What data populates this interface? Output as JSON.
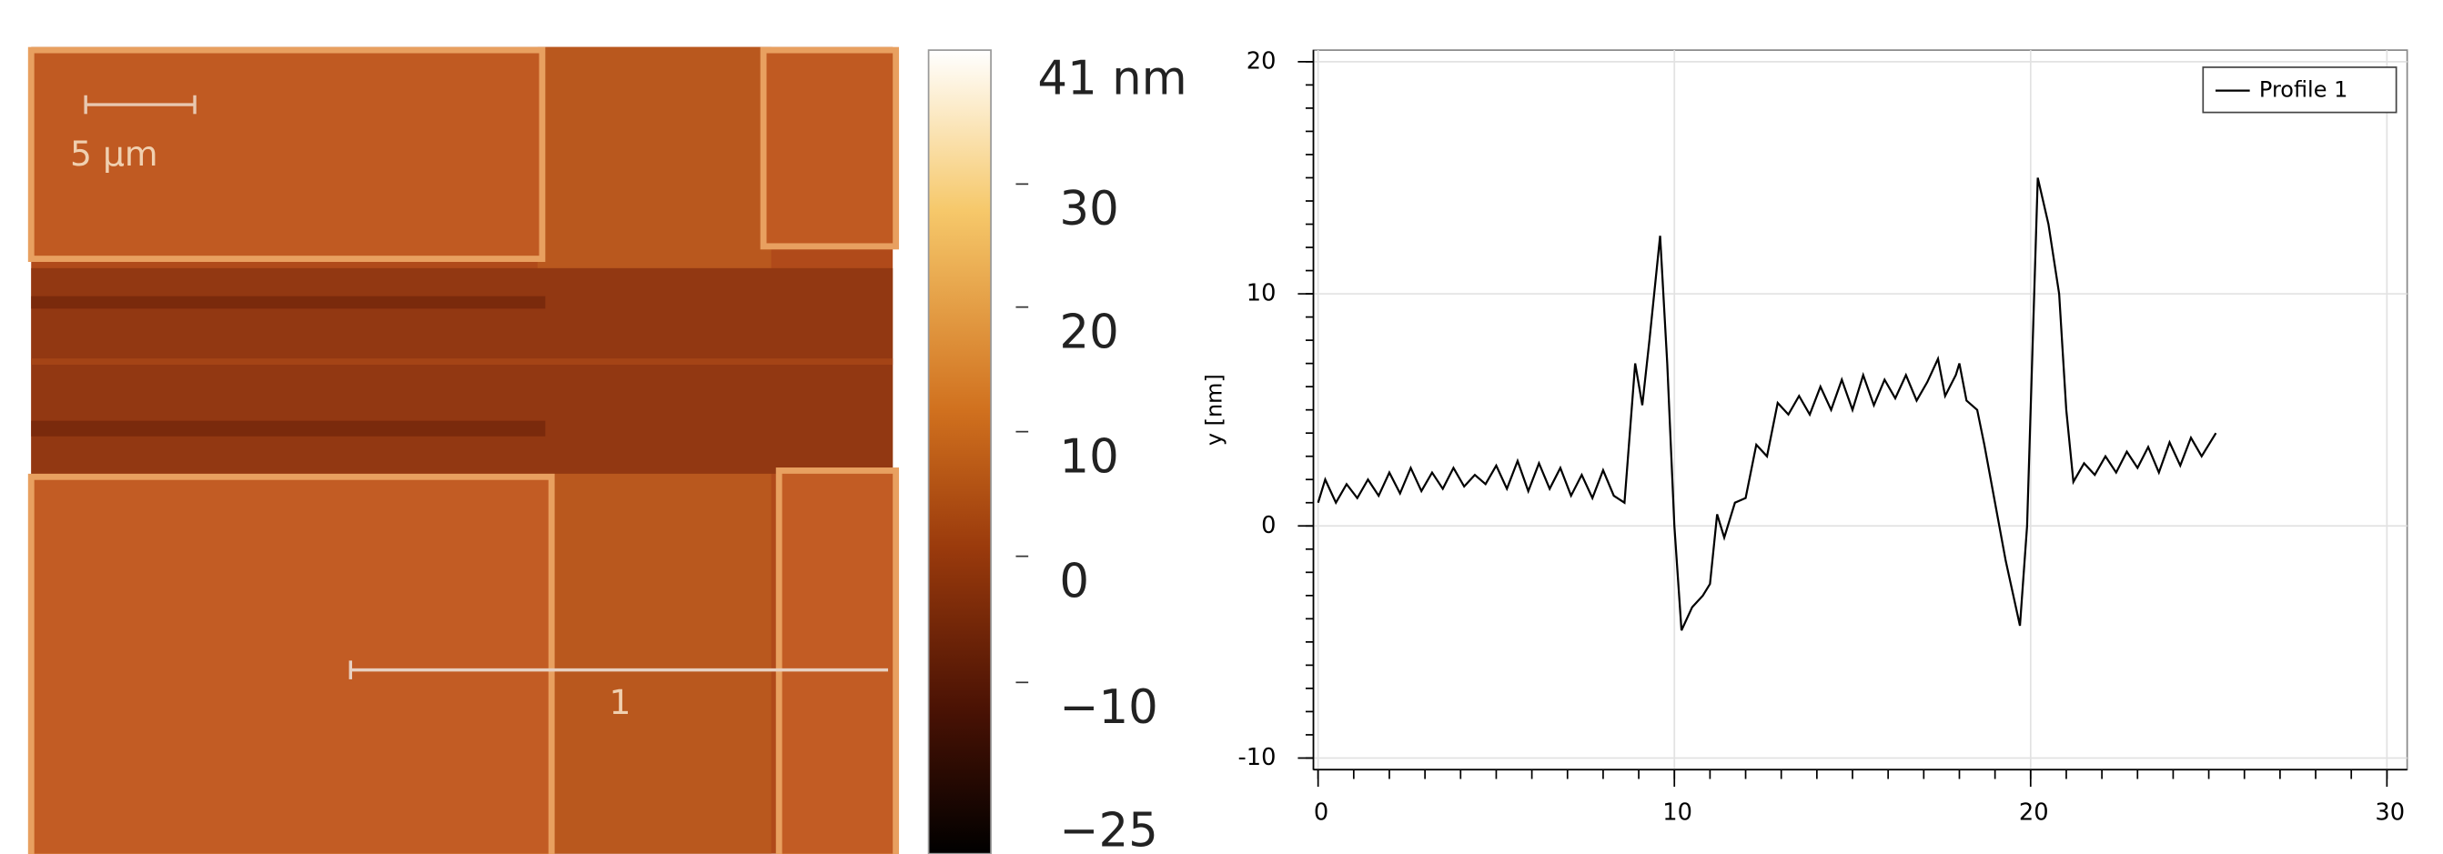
{
  "afm_image": {
    "scale_label": "5 µm",
    "profile_label": "1"
  },
  "colorbar": {
    "labels": [
      "41 nm",
      "30",
      "20",
      "10",
      "0",
      "−10",
      "−25"
    ]
  },
  "chart_data": {
    "type": "line",
    "ylabel": "y [nm]",
    "x": [
      0,
      0.2,
      0.5,
      0.8,
      1.1,
      1.4,
      1.7,
      2.0,
      2.3,
      2.6,
      2.9,
      3.2,
      3.5,
      3.8,
      4.1,
      4.4,
      4.7,
      5.0,
      5.3,
      5.6,
      5.9,
      6.2,
      6.5,
      6.8,
      7.1,
      7.4,
      7.7,
      8.0,
      8.3,
      8.6,
      8.9,
      9.1,
      9.3,
      9.6,
      9.8,
      10.0,
      10.2,
      10.5,
      10.8,
      11.0,
      11.2,
      11.4,
      11.7,
      12.0,
      12.3,
      12.6,
      12.9,
      13.2,
      13.5,
      13.8,
      14.1,
      14.4,
      14.7,
      15.0,
      15.3,
      15.6,
      15.9,
      16.2,
      16.5,
      16.8,
      17.1,
      17.4,
      17.6,
      17.9,
      18.0,
      18.2,
      18.5,
      18.7,
      19.0,
      19.3,
      19.7,
      19.9,
      20.2,
      20.5,
      20.8,
      21.0,
      21.2,
      21.5,
      21.8,
      22.1,
      22.4,
      22.7,
      23.0,
      23.3,
      23.6,
      23.9,
      24.2,
      24.5,
      24.8,
      25.2
    ],
    "series": [
      {
        "name": "Profile 1",
        "color": "#000000",
        "values": [
          1,
          2,
          1,
          1.8,
          1.2,
          2,
          1.3,
          2.3,
          1.4,
          2.5,
          1.5,
          2.3,
          1.6,
          2.5,
          1.7,
          2.2,
          1.8,
          2.6,
          1.6,
          2.8,
          1.5,
          2.7,
          1.6,
          2.5,
          1.3,
          2.2,
          1.2,
          2.4,
          1.3,
          1,
          7,
          5.2,
          8,
          12.5,
          7,
          0,
          -4.5,
          -3.5,
          -3,
          -2.5,
          0.5,
          -0.5,
          1,
          1.2,
          3.5,
          3,
          5.3,
          4.8,
          5.6,
          4.8,
          6,
          5,
          6.3,
          5,
          6.5,
          5.2,
          6.3,
          5.5,
          6.5,
          5.4,
          6.2,
          7.2,
          5.6,
          6.5,
          7,
          5.4,
          5,
          3.5,
          1,
          -1.5,
          -4.3,
          0,
          15,
          13,
          10,
          5,
          1.9,
          2.7,
          2.2,
          3,
          2.3,
          3.2,
          2.5,
          3.4,
          2.3,
          3.6,
          2.6,
          3.8,
          3,
          4
        ]
      }
    ],
    "xlim": [
      0,
      30
    ],
    "xticks": [
      0,
      10,
      20,
      30
    ],
    "ylim": [
      -10.5,
      20.5
    ],
    "yticks": [
      -10,
      0,
      10,
      20
    ],
    "grid": true,
    "legend": "upper right"
  }
}
